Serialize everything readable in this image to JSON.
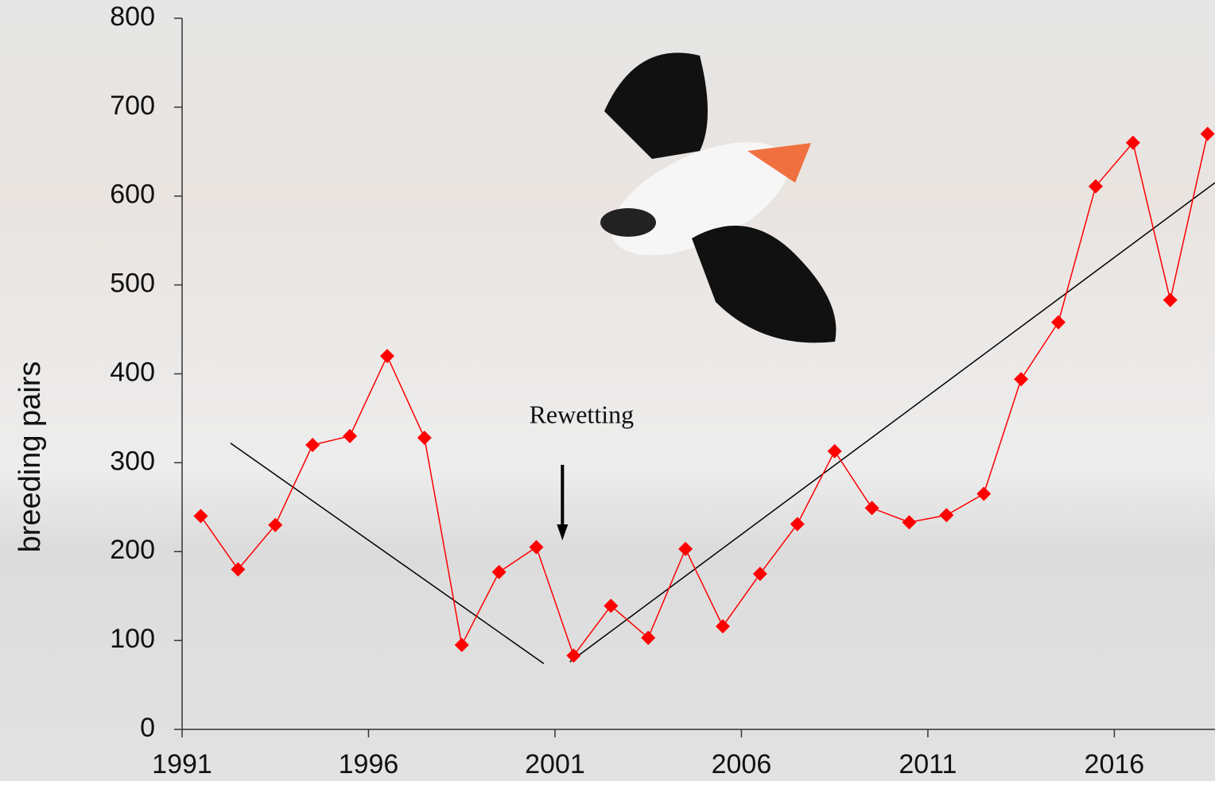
{
  "chart_data": {
    "type": "line",
    "y_label": "breeding pairs",
    "annotation": {
      "text": "Rewetting",
      "x": 2001.2
    },
    "series": [
      {
        "color": "#ff0000",
        "x": [
          1991.5,
          1992.5,
          1993.5,
          1994.5,
          1995.5,
          1996.5,
          1997.5,
          1998.5,
          1999.5,
          2000.5,
          2001.5,
          2002.5,
          2003.5,
          2004.5,
          2005.5,
          2006.5,
          2007.5,
          2008.5,
          2009.5,
          2010.5,
          2011.5,
          2012.5,
          2013.5,
          2014.5,
          2015.5,
          2016.5,
          2017.5,
          2018.5
        ],
        "values": [
          240,
          180,
          230,
          320,
          330,
          420,
          328,
          95,
          177,
          205,
          83,
          139,
          103,
          203,
          116,
          175,
          231,
          313,
          249,
          233,
          241,
          265,
          394,
          458,
          611,
          660,
          483,
          670
        ]
      }
    ],
    "trend_lines": [
      {
        "color": "#000000",
        "x": [
          1992.3,
          2000.7
        ],
        "values": [
          322,
          74
        ]
      },
      {
        "color": "#000000",
        "x": [
          2001.4,
          2018.7
        ],
        "values": [
          76,
          615
        ]
      }
    ],
    "xlim": [
      1991,
      2018.7
    ],
    "ylim": [
      0,
      800
    ],
    "xticks": [
      1991,
      1996,
      2001,
      2006,
      2011,
      2016
    ],
    "yticks": [
      0,
      100,
      200,
      300,
      400,
      500,
      600,
      700,
      800
    ]
  }
}
